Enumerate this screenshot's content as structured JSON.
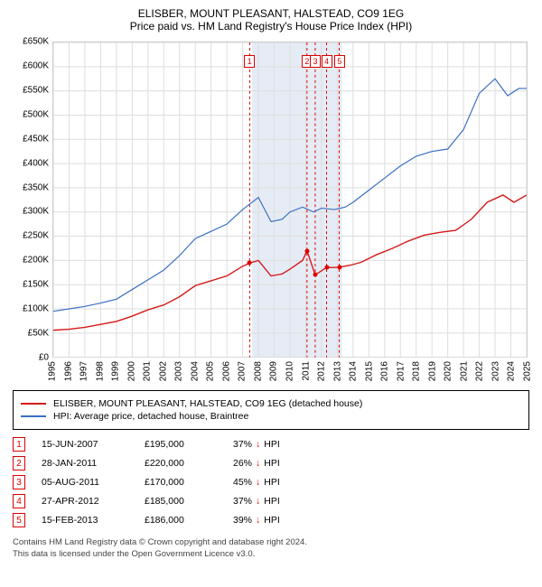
{
  "title": "ELISBER, MOUNT PLEASANT, HALSTEAD, CO9 1EG",
  "subtitle": "Price paid vs. HM Land Registry's House Price Index (HPI)",
  "chart": {
    "type": "line",
    "background_color": "#ffffff",
    "shade_color": "#e6ecf5",
    "grid_color": "#dddddd",
    "axis_font_size": 10,
    "x_years": [
      1995,
      1996,
      1997,
      1998,
      1999,
      2000,
      2001,
      2002,
      2003,
      2004,
      2005,
      2006,
      2007,
      2008,
      2009,
      2010,
      2011,
      2012,
      2013,
      2014,
      2015,
      2016,
      2017,
      2018,
      2019,
      2020,
      2021,
      2022,
      2023,
      2024,
      2025
    ],
    "ylim": [
      0,
      650000
    ],
    "ytick_step": 50000,
    "ytick_labels": [
      "£0",
      "£50K",
      "£100K",
      "£150K",
      "£200K",
      "£250K",
      "£300K",
      "£350K",
      "£400K",
      "£450K",
      "£500K",
      "£550K",
      "£600K",
      "£650K"
    ],
    "shade_start_year": 2007.6,
    "shade_end_year": 2013.3,
    "series": [
      {
        "name": "hpi",
        "color": "#3a6fc4",
        "width": 1.2,
        "points": [
          [
            1995,
            95
          ],
          [
            1996,
            100
          ],
          [
            1997,
            105
          ],
          [
            1998,
            112
          ],
          [
            1999,
            120
          ],
          [
            2000,
            140
          ],
          [
            2001,
            160
          ],
          [
            2002,
            180
          ],
          [
            2003,
            210
          ],
          [
            2004,
            245
          ],
          [
            2005,
            260
          ],
          [
            2006,
            275
          ],
          [
            2007,
            305
          ],
          [
            2008,
            330
          ],
          [
            2008.8,
            280
          ],
          [
            2009.5,
            285
          ],
          [
            2010,
            300
          ],
          [
            2010.8,
            310
          ],
          [
            2011.5,
            300
          ],
          [
            2012,
            308
          ],
          [
            2012.8,
            305
          ],
          [
            2013.5,
            310
          ],
          [
            2014,
            320
          ],
          [
            2015,
            345
          ],
          [
            2016,
            370
          ],
          [
            2017,
            395
          ],
          [
            2018,
            415
          ],
          [
            2019,
            425
          ],
          [
            2020,
            430
          ],
          [
            2021,
            470
          ],
          [
            2022,
            545
          ],
          [
            2023,
            575
          ],
          [
            2023.8,
            540
          ],
          [
            2024.5,
            555
          ],
          [
            2025,
            555
          ]
        ]
      },
      {
        "name": "property",
        "color": "#d61a1a",
        "width": 1.4,
        "points": [
          [
            1995,
            56
          ],
          [
            1996,
            58
          ],
          [
            1997,
            62
          ],
          [
            1998,
            68
          ],
          [
            1999,
            74
          ],
          [
            2000,
            85
          ],
          [
            2001,
            98
          ],
          [
            2002,
            108
          ],
          [
            2003,
            125
          ],
          [
            2004,
            148
          ],
          [
            2005,
            158
          ],
          [
            2006,
            168
          ],
          [
            2007,
            188
          ],
          [
            2007.5,
            195
          ],
          [
            2008,
            200
          ],
          [
            2008.8,
            168
          ],
          [
            2009.5,
            172
          ],
          [
            2010,
            182
          ],
          [
            2010.8,
            200
          ],
          [
            2011.08,
            220
          ],
          [
            2011.6,
            170
          ],
          [
            2012.3,
            185
          ],
          [
            2013.1,
            186
          ],
          [
            2013.8,
            190
          ],
          [
            2014.5,
            196
          ],
          [
            2015.5,
            212
          ],
          [
            2016.5,
            225
          ],
          [
            2017.5,
            240
          ],
          [
            2018.5,
            252
          ],
          [
            2019.5,
            258
          ],
          [
            2020.5,
            262
          ],
          [
            2021.5,
            285
          ],
          [
            2022.5,
            320
          ],
          [
            2023.5,
            335
          ],
          [
            2024.2,
            320
          ],
          [
            2025,
            335
          ]
        ]
      }
    ],
    "transactions": [
      {
        "n": "1",
        "x": 2007.45,
        "price": 195000,
        "date": "15-JUN-2007",
        "price_label": "£195,000",
        "pct": "37%",
        "dir": "↓"
      },
      {
        "n": "2",
        "x": 2011.08,
        "price": 220000,
        "date": "28-JAN-2011",
        "price_label": "£220,000",
        "pct": "26%",
        "dir": "↓"
      },
      {
        "n": "3",
        "x": 2011.6,
        "price": 170000,
        "date": "05-AUG-2011",
        "price_label": "£170,000",
        "pct": "45%",
        "dir": "↓"
      },
      {
        "n": "4",
        "x": 2012.32,
        "price": 185000,
        "date": "27-APR-2012",
        "price_label": "£185,000",
        "pct": "37%",
        "dir": "↓"
      },
      {
        "n": "5",
        "x": 2013.12,
        "price": 186000,
        "date": "15-FEB-2013",
        "price_label": "£186,000",
        "pct": "39%",
        "dir": "↓"
      }
    ],
    "marker_box_y_value": 610000
  },
  "legend": {
    "items": [
      {
        "color": "#d61a1a",
        "label": "ELISBER, MOUNT PLEASANT, HALSTEAD, CO9 1EG (detached house)"
      },
      {
        "color": "#3a6fc4",
        "label": "HPI: Average price, detached house, Braintree"
      }
    ]
  },
  "hpi_suffix": "HPI",
  "footer": {
    "line1": "Contains HM Land Registry data © Crown copyright and database right 2024.",
    "line2": "This data is licensed under the Open Government Licence v3.0."
  }
}
